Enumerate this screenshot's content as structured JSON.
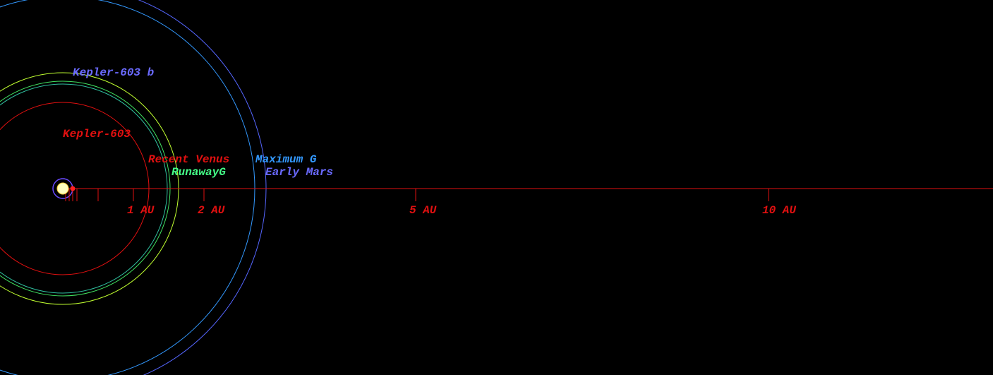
{
  "labels": {
    "planet": "Kepler-603 b",
    "star": "Kepler-603",
    "recent_venus": "Recent Venus",
    "runaway_greenhouse": "RunawayG",
    "maximum_greenhouse": "Maximum G",
    "early_mars": "Early Mars"
  },
  "axis": {
    "ticks": [
      "1 AU",
      "2 AU",
      "5 AU",
      "10 AU"
    ]
  }
}
